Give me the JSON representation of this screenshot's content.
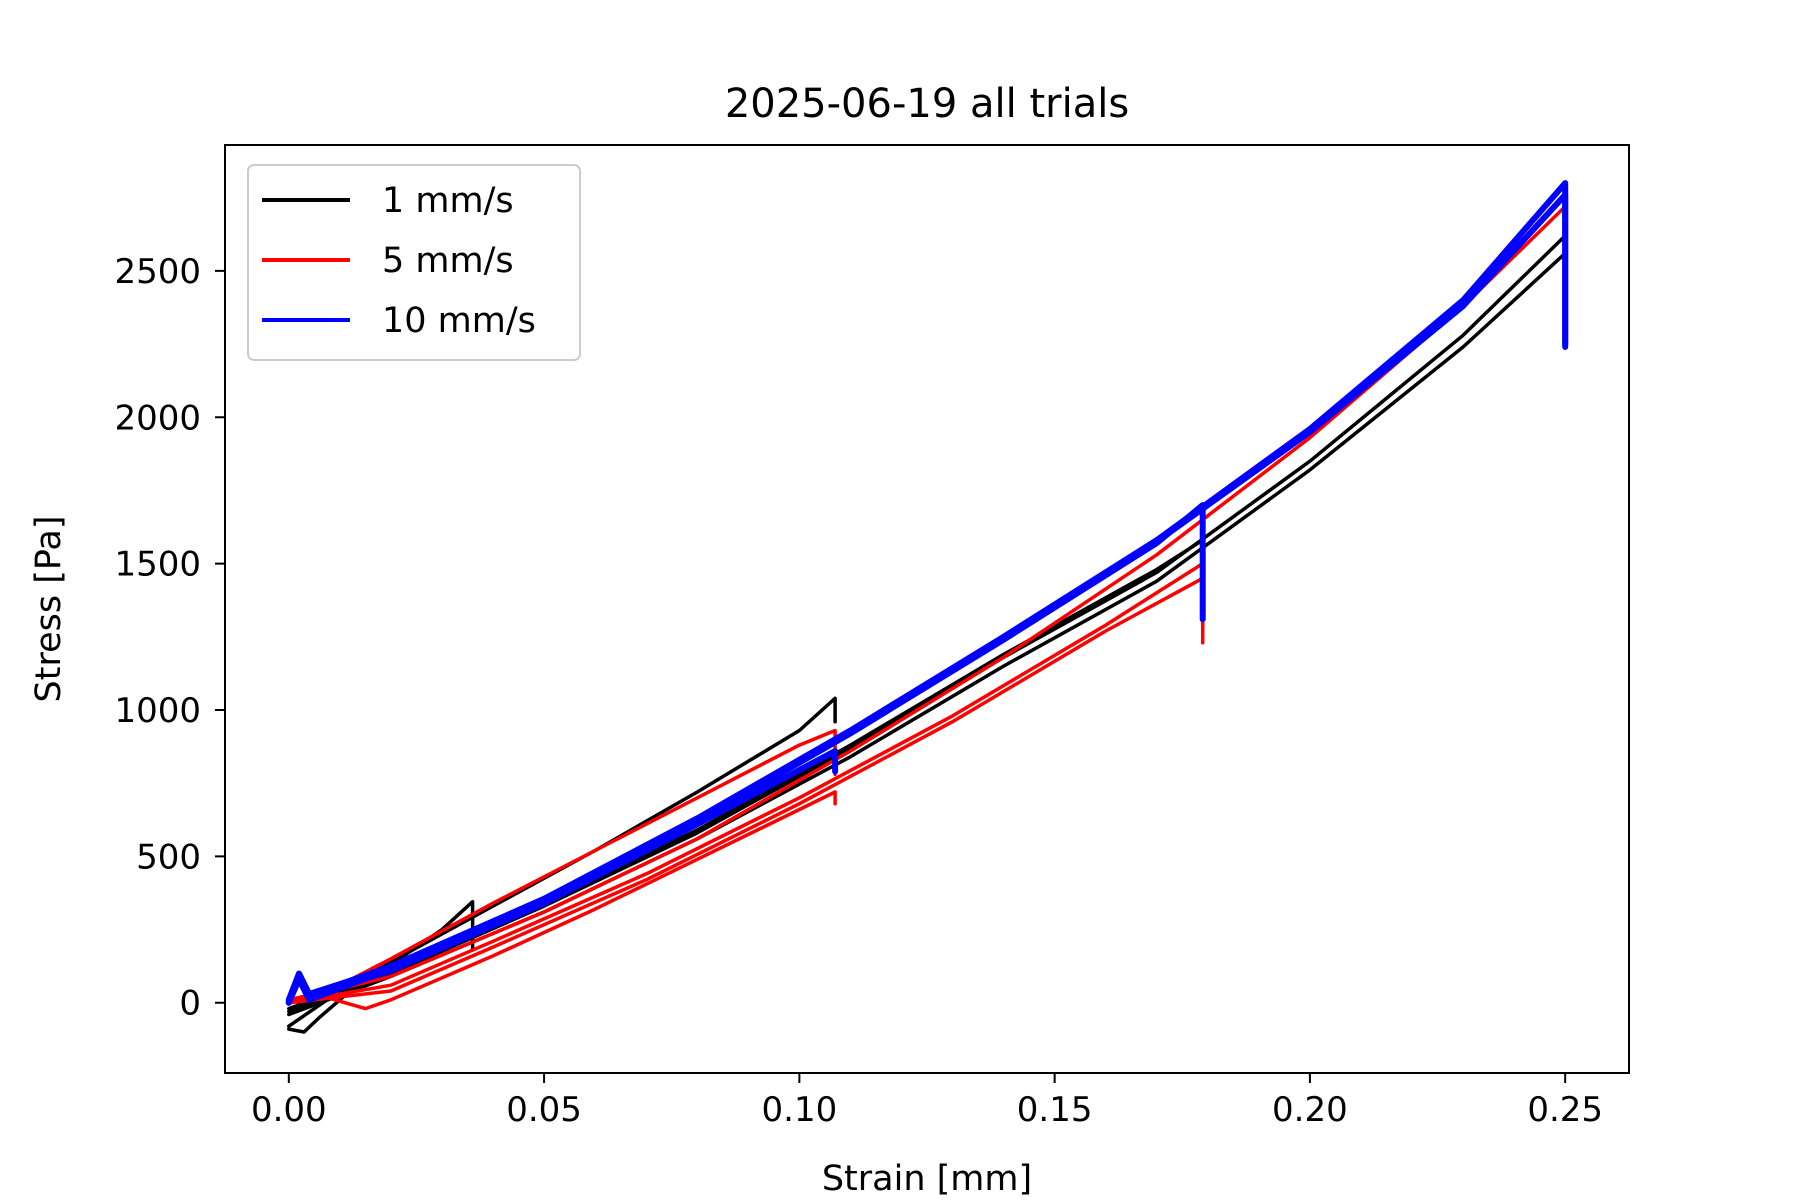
{
  "chart_data": {
    "type": "line",
    "title": "2025-06-19 all trials",
    "xlabel": "Strain [mm]",
    "ylabel": "Stress [Pa]",
    "xlim": [
      -0.0125,
      0.2625
    ],
    "ylim": [
      -240,
      2930
    ],
    "xticks": [
      0.0,
      0.05,
      0.1,
      0.15,
      0.2,
      0.25
    ],
    "xtick_labels": [
      "0.00",
      "0.05",
      "0.10",
      "0.15",
      "0.20",
      "0.25"
    ],
    "yticks": [
      0,
      500,
      1000,
      1500,
      2000,
      2500
    ],
    "ytick_labels": [
      "0",
      "500",
      "1000",
      "1500",
      "2000",
      "2500"
    ],
    "grid": false,
    "legend_position": "upper-left",
    "series": [
      {
        "name": "1 mm/s",
        "color": "#000000",
        "trials": [
          [
            [
              0.0,
              -90
            ],
            [
              0.003,
              -100
            ],
            [
              0.006,
              -50
            ],
            [
              0.012,
              40
            ],
            [
              0.02,
              130
            ],
            [
              0.03,
              250
            ],
            [
              0.036,
              345
            ],
            [
              0.036,
              180
            ]
          ],
          [
            [
              0.0,
              -80
            ],
            [
              0.01,
              40
            ],
            [
              0.02,
              140
            ],
            [
              0.04,
              330
            ],
            [
              0.06,
              520
            ],
            [
              0.08,
              720
            ],
            [
              0.1,
              930
            ],
            [
              0.107,
              1040
            ],
            [
              0.107,
              960
            ]
          ],
          [
            [
              0.0,
              -20
            ],
            [
              0.02,
              110
            ],
            [
              0.05,
              340
            ],
            [
              0.08,
              590
            ],
            [
              0.11,
              880
            ],
            [
              0.14,
              1190
            ],
            [
              0.17,
              1480
            ],
            [
              0.179,
              1580
            ],
            [
              0.179,
              1440
            ]
          ],
          [
            [
              0.0,
              -30
            ],
            [
              0.02,
              100
            ],
            [
              0.05,
              330
            ],
            [
              0.08,
              580
            ],
            [
              0.11,
              870
            ],
            [
              0.14,
              1180
            ],
            [
              0.17,
              1470
            ],
            [
              0.2,
              1850
            ],
            [
              0.23,
              2280
            ],
            [
              0.25,
              2620
            ],
            [
              0.25,
              2240
            ]
          ],
          [
            [
              0.0,
              -40
            ],
            [
              0.02,
              90
            ],
            [
              0.05,
              310
            ],
            [
              0.08,
              560
            ],
            [
              0.11,
              840
            ],
            [
              0.14,
              1150
            ],
            [
              0.17,
              1440
            ],
            [
              0.2,
              1820
            ],
            [
              0.23,
              2240
            ],
            [
              0.25,
              2560
            ],
            [
              0.25,
              2250
            ]
          ]
        ]
      },
      {
        "name": "5 mm/s",
        "color": "#ff0000",
        "trials": [
          [
            [
              0.0,
              0
            ],
            [
              0.005,
              20
            ],
            [
              0.01,
              60
            ],
            [
              0.02,
              150
            ],
            [
              0.04,
              340
            ],
            [
              0.06,
              520
            ],
            [
              0.08,
              700
            ],
            [
              0.1,
              880
            ],
            [
              0.107,
              930
            ],
            [
              0.107,
              780
            ]
          ],
          [
            [
              0.0,
              10
            ],
            [
              0.005,
              30
            ],
            [
              0.015,
              -20
            ],
            [
              0.02,
              10
            ],
            [
              0.04,
              160
            ],
            [
              0.06,
              320
            ],
            [
              0.08,
              490
            ],
            [
              0.1,
              660
            ],
            [
              0.107,
              720
            ],
            [
              0.107,
              680
            ]
          ],
          [
            [
              0.0,
              10
            ],
            [
              0.01,
              30
            ],
            [
              0.02,
              60
            ],
            [
              0.04,
              210
            ],
            [
              0.07,
              440
            ],
            [
              0.1,
              700
            ],
            [
              0.13,
              980
            ],
            [
              0.16,
              1290
            ],
            [
              0.179,
              1500
            ],
            [
              0.179,
              1230
            ]
          ],
          [
            [
              0.0,
              0
            ],
            [
              0.01,
              20
            ],
            [
              0.02,
              40
            ],
            [
              0.04,
              190
            ],
            [
              0.07,
              420
            ],
            [
              0.1,
              680
            ],
            [
              0.13,
              960
            ],
            [
              0.16,
              1270
            ],
            [
              0.179,
              1450
            ],
            [
              0.179,
              1280
            ]
          ],
          [
            [
              0.0,
              5
            ],
            [
              0.02,
              90
            ],
            [
              0.05,
              310
            ],
            [
              0.08,
              560
            ],
            [
              0.11,
              860
            ],
            [
              0.14,
              1180
            ],
            [
              0.17,
              1530
            ],
            [
              0.2,
              1930
            ],
            [
              0.23,
              2380
            ],
            [
              0.25,
              2720
            ],
            [
              0.25,
              2260
            ]
          ]
        ]
      },
      {
        "name": "10 mm/s",
        "color": "#0000ff",
        "trials": [
          [
            [
              0.0,
              0
            ],
            [
              0.002,
              90
            ],
            [
              0.004,
              20
            ],
            [
              0.02,
              110
            ],
            [
              0.05,
              340
            ],
            [
              0.08,
              610
            ],
            [
              0.107,
              860
            ],
            [
              0.107,
              790
            ]
          ],
          [
            [
              0.0,
              10
            ],
            [
              0.002,
              100
            ],
            [
              0.004,
              30
            ],
            [
              0.02,
              120
            ],
            [
              0.05,
              350
            ],
            [
              0.08,
              620
            ],
            [
              0.11,
              920
            ],
            [
              0.14,
              1240
            ],
            [
              0.17,
              1570
            ],
            [
              0.179,
              1700
            ],
            [
              0.179,
              1310
            ]
          ],
          [
            [
              0.0,
              5
            ],
            [
              0.002,
              95
            ],
            [
              0.004,
              25
            ],
            [
              0.02,
              125
            ],
            [
              0.05,
              355
            ],
            [
              0.08,
              630
            ],
            [
              0.11,
              930
            ],
            [
              0.14,
              1250
            ],
            [
              0.17,
              1580
            ],
            [
              0.2,
              1960
            ],
            [
              0.23,
              2400
            ],
            [
              0.25,
              2800
            ],
            [
              0.25,
              2240
            ]
          ],
          [
            [
              0.0,
              0
            ],
            [
              0.002,
              80
            ],
            [
              0.004,
              10
            ],
            [
              0.02,
              115
            ],
            [
              0.05,
              345
            ],
            [
              0.08,
              625
            ],
            [
              0.11,
              925
            ],
            [
              0.14,
              1245
            ],
            [
              0.17,
              1575
            ],
            [
              0.2,
              1950
            ],
            [
              0.23,
              2380
            ],
            [
              0.25,
              2760
            ],
            [
              0.25,
              2250
            ]
          ]
        ]
      }
    ]
  }
}
